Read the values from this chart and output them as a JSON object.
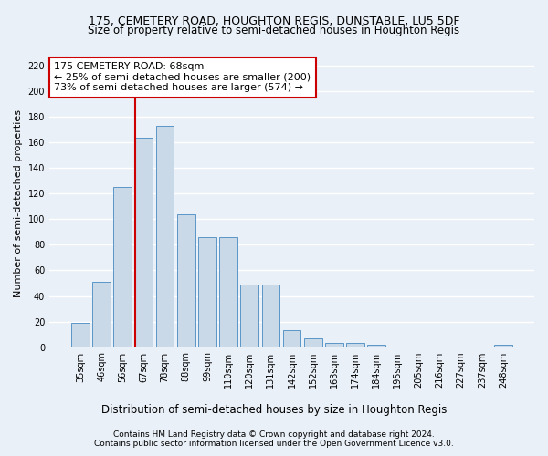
{
  "title1": "175, CEMETERY ROAD, HOUGHTON REGIS, DUNSTABLE, LU5 5DF",
  "title2": "Size of property relative to semi-detached houses in Houghton Regis",
  "xlabel": "Distribution of semi-detached houses by size in Houghton Regis",
  "ylabel": "Number of semi-detached properties",
  "footnote1": "Contains HM Land Registry data © Crown copyright and database right 2024.",
  "footnote2": "Contains public sector information licensed under the Open Government Licence v3.0.",
  "annotation_line1": "175 CEMETERY ROAD: 68sqm",
  "annotation_line2": "← 25% of semi-detached houses are smaller (200)",
  "annotation_line3": "73% of semi-detached houses are larger (574) →",
  "bar_labels": [
    "35sqm",
    "46sqm",
    "56sqm",
    "67sqm",
    "78sqm",
    "88sqm",
    "99sqm",
    "110sqm",
    "120sqm",
    "131sqm",
    "142sqm",
    "152sqm",
    "163sqm",
    "174sqm",
    "184sqm",
    "195sqm",
    "205sqm",
    "216sqm",
    "227sqm",
    "237sqm",
    "248sqm"
  ],
  "bar_values": [
    19,
    51,
    125,
    164,
    173,
    104,
    86,
    86,
    49,
    49,
    13,
    7,
    3,
    3,
    2,
    0,
    0,
    0,
    0,
    0,
    2
  ],
  "bar_color": "#c9d9e8",
  "bar_edge_color": "#5a96c8",
  "vline_color": "#cc0000",
  "ylim": [
    0,
    225
  ],
  "yticks": [
    0,
    20,
    40,
    60,
    80,
    100,
    120,
    140,
    160,
    180,
    200,
    220
  ],
  "bg_color": "#eaf0f8",
  "plot_bg_color": "#eaf0f8",
  "grid_color": "#ffffff",
  "annotation_box_color": "#cc0000",
  "title1_fontsize": 9,
  "title2_fontsize": 8.5,
  "xlabel_fontsize": 8.5,
  "ylabel_fontsize": 8,
  "tick_fontsize": 7,
  "footnote_fontsize": 6.5,
  "annotation_fontsize": 8
}
